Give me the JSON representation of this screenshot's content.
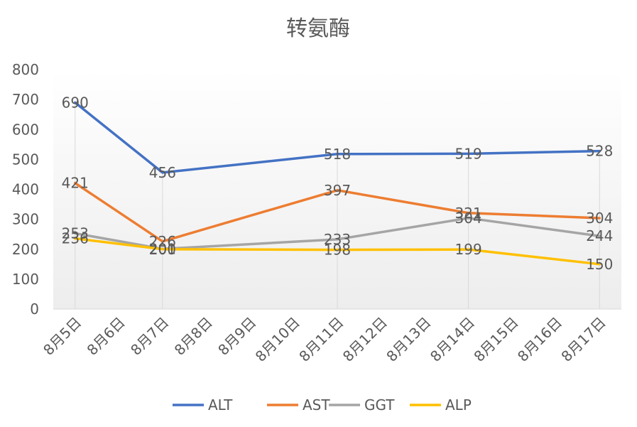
{
  "chart_data": {
    "type": "line",
    "title": "转氨酶",
    "xlabel": "",
    "ylabel": "",
    "ylim": [
      0,
      800
    ],
    "yticks": [
      0,
      100,
      200,
      300,
      400,
      500,
      600,
      700,
      800
    ],
    "categories": [
      "8月5日",
      "8月6日",
      "8月7日",
      "8月8日",
      "8月9日",
      "8月10日",
      "8月11日",
      "8月12日",
      "8月13日",
      "8月14日",
      "8月15日",
      "8月16日",
      "8月17日"
    ],
    "series": [
      {
        "name": "ALT",
        "color": "#4472C4",
        "points": [
          [
            0,
            690
          ],
          [
            2,
            456
          ],
          [
            6,
            518
          ],
          [
            9,
            519
          ],
          [
            12,
            528
          ]
        ]
      },
      {
        "name": "AST",
        "color": "#ED7D31",
        "points": [
          [
            0,
            421
          ],
          [
            2,
            226
          ],
          [
            6,
            397
          ],
          [
            9,
            321
          ],
          [
            12,
            304
          ]
        ]
      },
      {
        "name": "GGT",
        "color": "#A5A5A5",
        "points": [
          [
            0,
            253
          ],
          [
            2,
            201
          ],
          [
            6,
            233
          ],
          [
            9,
            304
          ],
          [
            12,
            244
          ]
        ]
      },
      {
        "name": "ALP",
        "color": "#FFC000",
        "points": [
          [
            0,
            236
          ],
          [
            2,
            200
          ],
          [
            6,
            198
          ],
          [
            9,
            199
          ],
          [
            12,
            150
          ]
        ]
      }
    ],
    "legend": "bottom",
    "grid": false,
    "drop_lines": true
  }
}
